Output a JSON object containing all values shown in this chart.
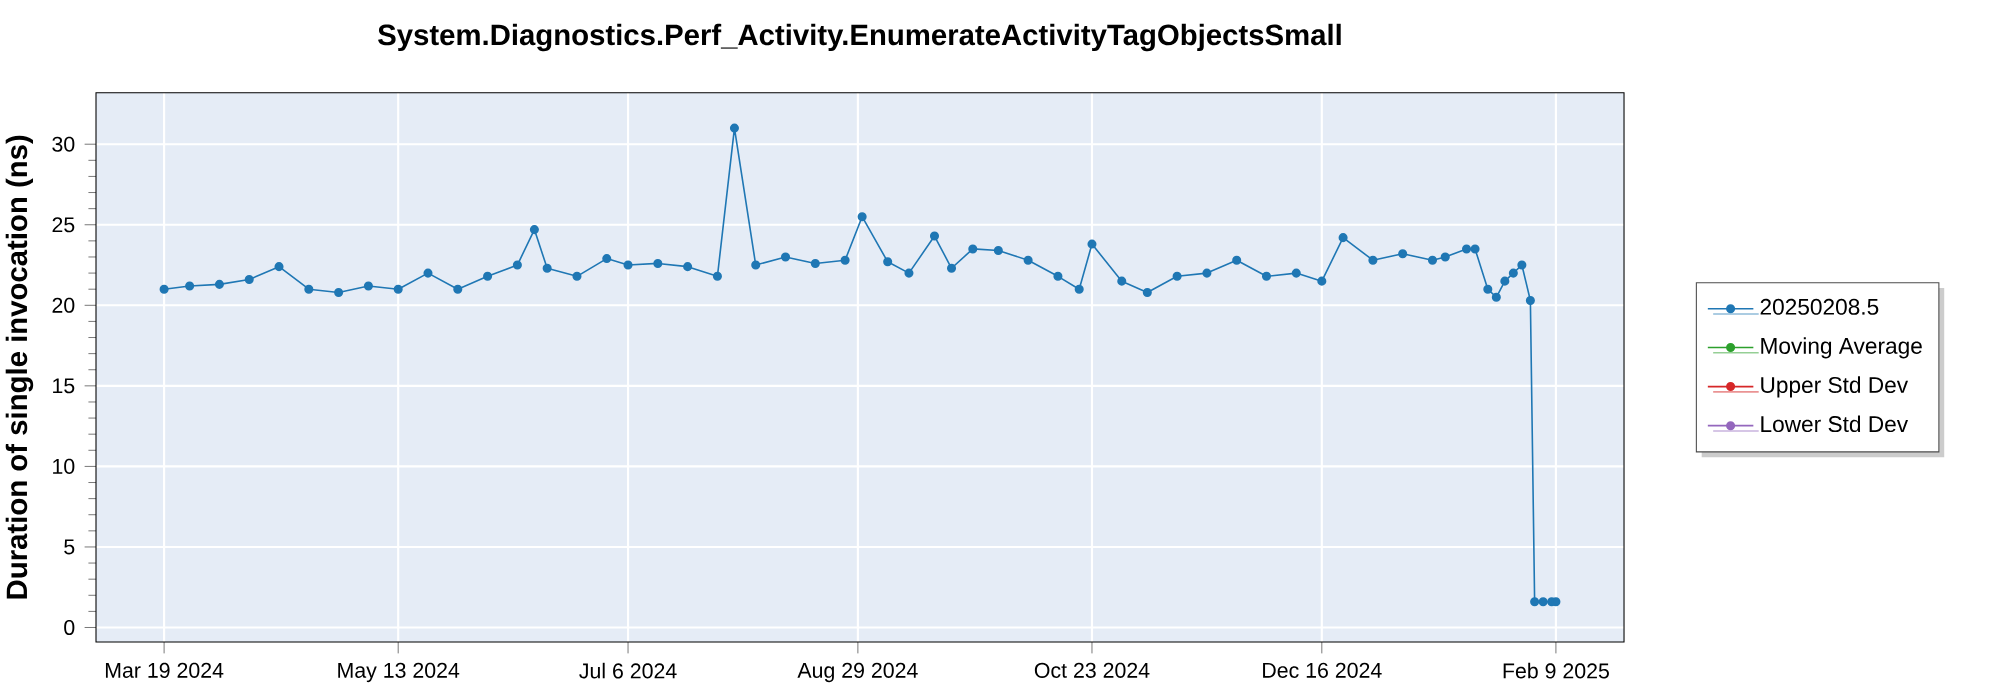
{
  "chart_data": {
    "type": "line",
    "title": "System.Diagnostics.Perf_Activity.EnumerateActivityTagObjectsSmall",
    "ylabel": "Duration of single invocation (ns)",
    "x": [
      "2024-03-19",
      "2024-03-25",
      "2024-04-01",
      "2024-04-08",
      "2024-04-15",
      "2024-04-22",
      "2024-04-29",
      "2024-05-06",
      "2024-05-13",
      "2024-05-20",
      "2024-05-27",
      "2024-06-03",
      "2024-06-10",
      "2024-06-14",
      "2024-06-17",
      "2024-06-24",
      "2024-07-01",
      "2024-07-06",
      "2024-07-13",
      "2024-07-20",
      "2024-07-27",
      "2024-07-31",
      "2024-08-05",
      "2024-08-12",
      "2024-08-19",
      "2024-08-26",
      "2024-08-30",
      "2024-09-05",
      "2024-09-10",
      "2024-09-16",
      "2024-09-20",
      "2024-09-25",
      "2024-10-01",
      "2024-10-08",
      "2024-10-15",
      "2024-10-20",
      "2024-10-23",
      "2024-10-30",
      "2024-11-05",
      "2024-11-12",
      "2024-11-19",
      "2024-11-26",
      "2024-12-03",
      "2024-12-10",
      "2024-12-16",
      "2024-12-21",
      "2024-12-28",
      "2025-01-04",
      "2025-01-11",
      "2025-01-14",
      "2025-01-19",
      "2025-01-21",
      "2025-01-24",
      "2025-01-26",
      "2025-01-28",
      "2025-01-30",
      "2025-02-01",
      "2025-02-03",
      "2025-02-04",
      "2025-02-06",
      "2025-02-08",
      "2025-02-09"
    ],
    "series": [
      {
        "name": "20250208.5",
        "color": "#1f77b4",
        "values": [
          21.0,
          21.2,
          21.3,
          21.6,
          22.4,
          21.0,
          20.8,
          21.2,
          21.0,
          22.0,
          21.0,
          21.8,
          22.5,
          24.7,
          22.3,
          21.8,
          22.9,
          22.5,
          22.6,
          22.4,
          21.8,
          31.0,
          22.5,
          23.0,
          22.6,
          22.8,
          25.5,
          22.7,
          22.0,
          24.3,
          22.3,
          23.5,
          23.4,
          22.8,
          21.8,
          21.0,
          23.8,
          21.5,
          20.8,
          21.8,
          22.0,
          22.8,
          21.8,
          22.0,
          21.5,
          24.2,
          22.8,
          23.2,
          22.8,
          23.0,
          23.5,
          23.5,
          21.0,
          20.5,
          21.5,
          22.0,
          22.5,
          20.3,
          1.6,
          1.6,
          1.6,
          1.6
        ]
      },
      {
        "name": "Moving Average",
        "color": "#2ca02c",
        "values": [
          null,
          null,
          null,
          null,
          null,
          null,
          null,
          null,
          null,
          null,
          null,
          null,
          null,
          null,
          null,
          null,
          null,
          null,
          null,
          null,
          null,
          null,
          null,
          null,
          null,
          null,
          null,
          null,
          null,
          null,
          null,
          null,
          null,
          null,
          null,
          null,
          null,
          null,
          null,
          null,
          null,
          null,
          null,
          null,
          null,
          null,
          null,
          null,
          null,
          null,
          null,
          null,
          null,
          null,
          null,
          null,
          null,
          null,
          null,
          null,
          null,
          null
        ]
      },
      {
        "name": "Upper Std Dev",
        "color": "#d62728",
        "values": [
          null,
          null,
          null,
          null,
          null,
          null,
          null,
          null,
          null,
          null,
          null,
          null,
          null,
          null,
          null,
          null,
          null,
          null,
          null,
          null,
          null,
          null,
          null,
          null,
          null,
          null,
          null,
          null,
          null,
          null,
          null,
          null,
          null,
          null,
          null,
          null,
          null,
          null,
          null,
          null,
          null,
          null,
          null,
          null,
          null,
          null,
          null,
          null,
          null,
          null,
          null,
          null,
          null,
          null,
          null,
          null,
          null,
          null,
          null,
          null,
          null,
          null
        ]
      },
      {
        "name": "Lower Std Dev",
        "color": "#9467bd",
        "values": [
          null,
          null,
          null,
          null,
          null,
          null,
          null,
          null,
          null,
          null,
          null,
          null,
          null,
          null,
          null,
          null,
          null,
          null,
          null,
          null,
          null,
          null,
          null,
          null,
          null,
          null,
          null,
          null,
          null,
          null,
          null,
          null,
          null,
          null,
          null,
          null,
          null,
          null,
          null,
          null,
          null,
          null,
          null,
          null,
          null,
          null,
          null,
          null,
          null,
          null,
          null,
          null,
          null,
          null,
          null,
          null,
          null,
          null,
          null,
          null,
          null,
          null
        ]
      }
    ],
    "xlim": [
      "2024-03-03",
      "2025-02-25"
    ],
    "xticks": [
      {
        "value": "2024-03-19",
        "label": "Mar 19 2024"
      },
      {
        "value": "2024-05-13",
        "label": "May 13 2024"
      },
      {
        "value": "2024-07-06",
        "label": "Jul 6 2024"
      },
      {
        "value": "2024-08-29",
        "label": "Aug 29 2024"
      },
      {
        "value": "2024-10-23",
        "label": "Oct 23 2024"
      },
      {
        "value": "2024-12-16",
        "label": "Dec 16 2024"
      },
      {
        "value": "2025-02-09",
        "label": "Feb 9 2025"
      }
    ],
    "ylim": [
      -0.9,
      33.2
    ],
    "yticks": [
      0,
      5,
      10,
      15,
      20,
      25,
      30
    ],
    "grid": true,
    "legend": "right",
    "marker": "circle",
    "line_style": "solid"
  }
}
